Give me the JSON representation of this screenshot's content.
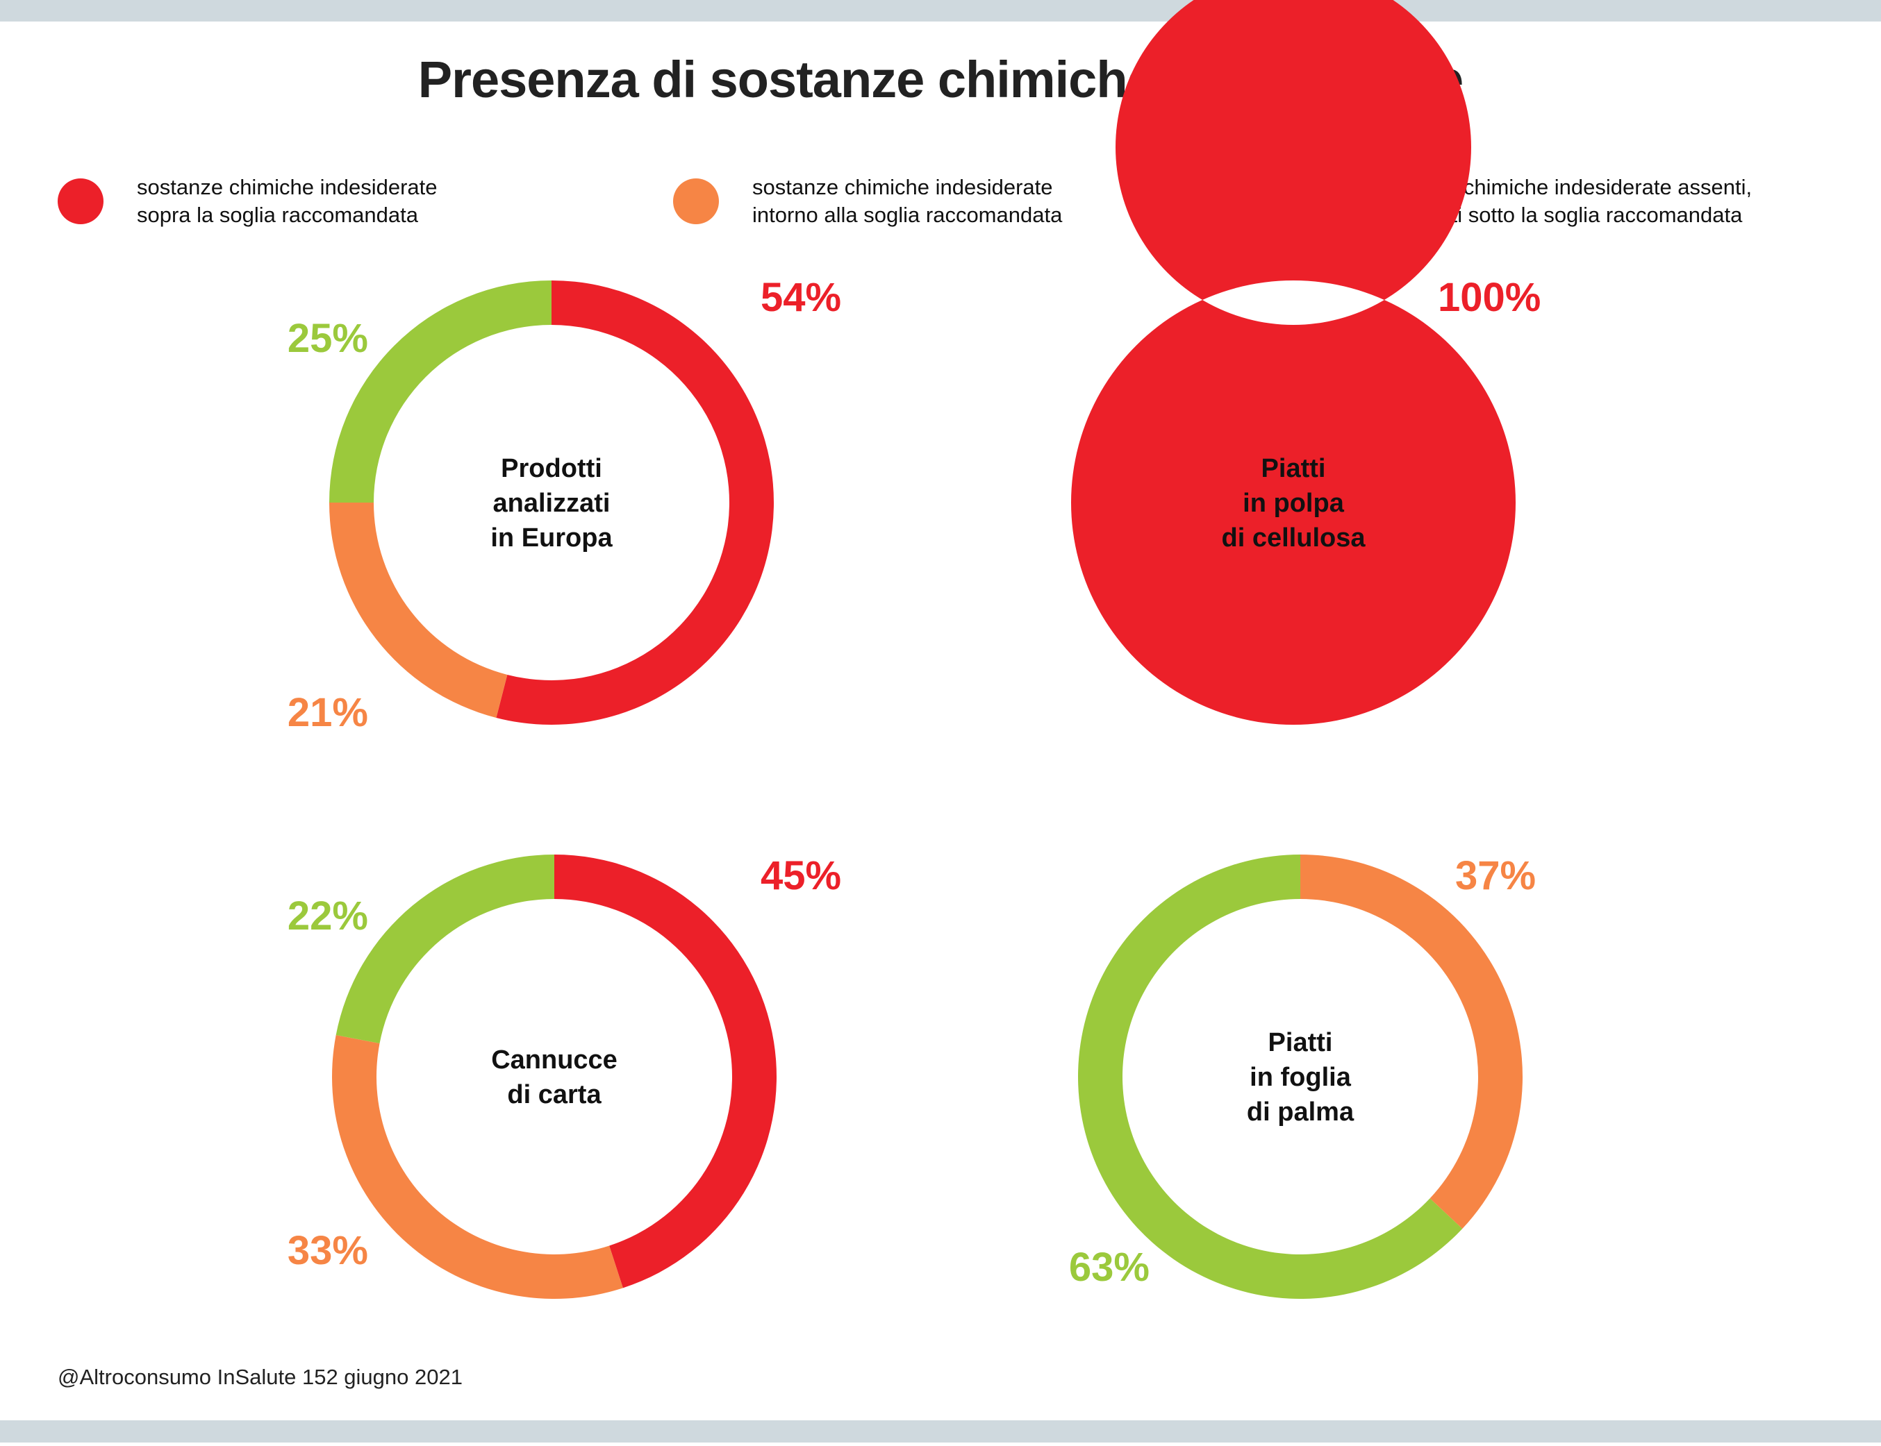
{
  "title": "Presenza di sostanze chimiche indesiderate",
  "colors": {
    "above": "#ec2029",
    "around": "#f68545",
    "below": "#9bc93c",
    "band": "#cfd9de"
  },
  "legend": [
    {
      "key": "above",
      "line1": "sostanze chimiche indesiderate",
      "line2": "sopra la soglia raccomandata"
    },
    {
      "key": "around",
      "line1": "sostanze chimiche indesiderate",
      "line2": "intorno alla soglia raccomandata"
    },
    {
      "key": "below",
      "line1": "Sostanze chimiche indesiderate assenti,",
      "line2": "o presenti sotto la soglia raccomandata"
    }
  ],
  "chart_data": [
    {
      "type": "pie",
      "title_lines": [
        "Prodotti",
        "analizzati",
        "in Europa"
      ],
      "slices": [
        {
          "key": "above",
          "value": 54,
          "label": "54%"
        },
        {
          "key": "around",
          "value": 21,
          "label": "21%"
        },
        {
          "key": "below",
          "value": 25,
          "label": "25%"
        }
      ]
    },
    {
      "type": "pie",
      "title_lines": [
        "Piatti",
        "in polpa",
        "di cellulosa"
      ],
      "slices": [
        {
          "key": "above",
          "value": 100,
          "label": "100%"
        }
      ]
    },
    {
      "type": "pie",
      "title_lines": [
        "Cannucce",
        "di carta"
      ],
      "slices": [
        {
          "key": "above",
          "value": 45,
          "label": "45%"
        },
        {
          "key": "around",
          "value": 33,
          "label": "33%"
        },
        {
          "key": "below",
          "value": 22,
          "label": "22%"
        }
      ]
    },
    {
      "type": "pie",
      "title_lines": [
        "Piatti",
        "in foglia",
        "di palma"
      ],
      "slices": [
        {
          "key": "around",
          "value": 37,
          "label": "37%"
        },
        {
          "key": "below",
          "value": 63,
          "label": "63%"
        }
      ]
    }
  ],
  "footer": "@Altroconsumo InSalute 152 giugno 2021"
}
